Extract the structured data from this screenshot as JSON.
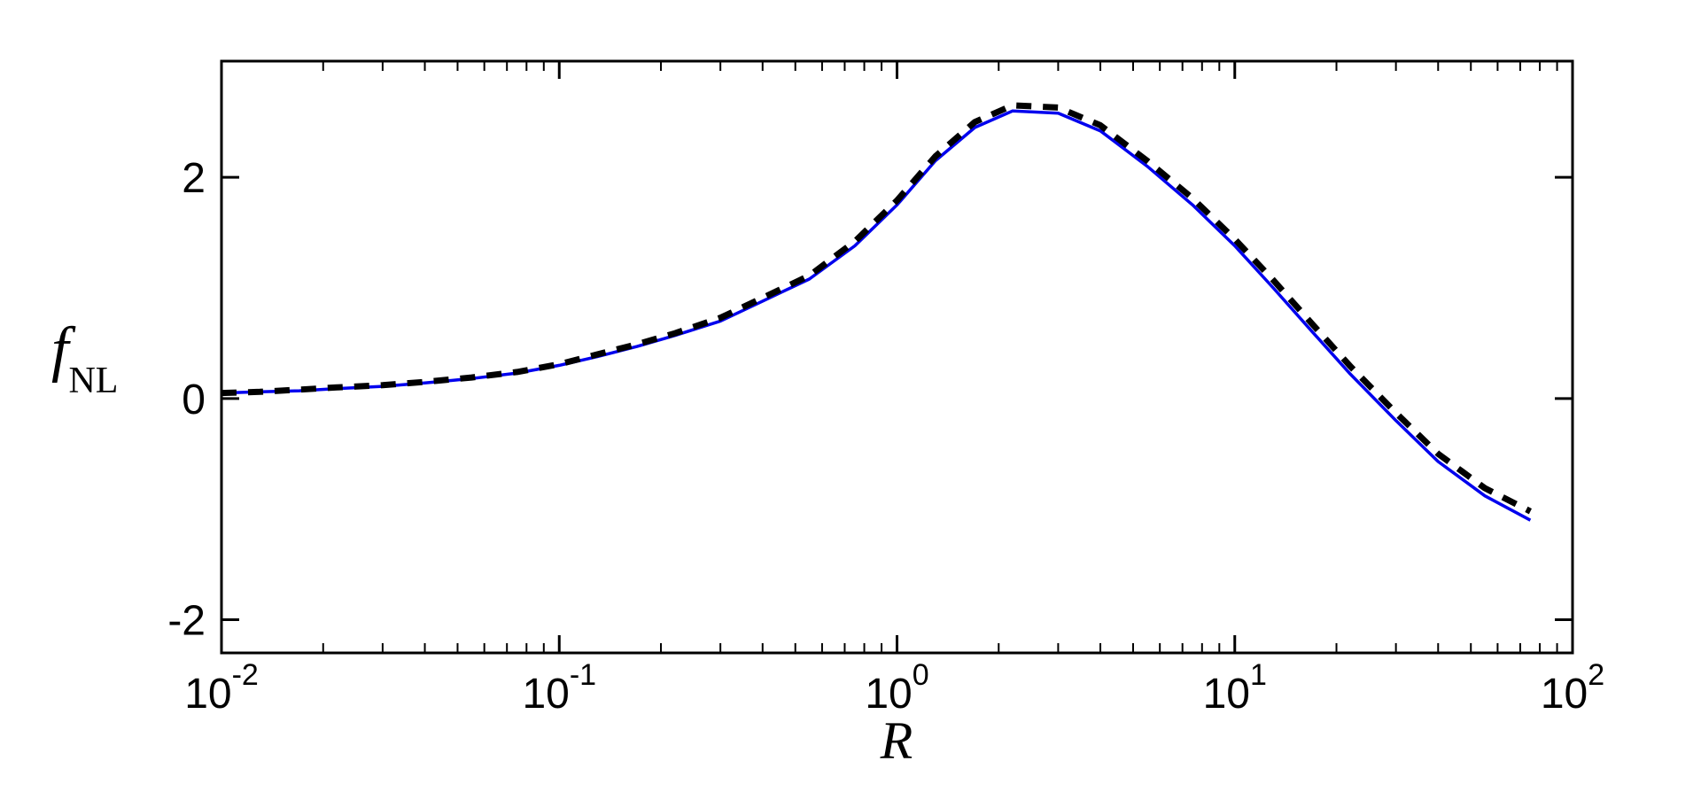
{
  "figure": {
    "background": "#ffffff",
    "xlabel": "R",
    "ylabel_main": "f",
    "ylabel_sub": "NL",
    "axis_color": "#000000"
  },
  "chart_data": {
    "type": "line",
    "title": "",
    "xlabel": "R",
    "ylabel": "f_NL",
    "x_scale": "log",
    "y_scale": "linear",
    "xlim": [
      0.01,
      100
    ],
    "ylim": [
      -2.3,
      3.05
    ],
    "grid": false,
    "legend": "none",
    "x_tick_values": [
      0.01,
      0.1,
      1,
      10,
      100
    ],
    "x_tick_labels": [
      {
        "base": "10",
        "exp": "-2"
      },
      {
        "base": "10",
        "exp": "-1"
      },
      {
        "base": "10",
        "exp": "0"
      },
      {
        "base": "10",
        "exp": "1"
      },
      {
        "base": "10",
        "exp": "2"
      }
    ],
    "y_ticks": [
      {
        "value": 2,
        "label": "2"
      },
      {
        "value": 0,
        "label": "0"
      },
      {
        "value": -2,
        "label": "-2"
      }
    ],
    "series": [
      {
        "name": "solid-blue-curve",
        "color": "#0000ee",
        "style": "solid",
        "width": 3.5,
        "x": [
          0.01,
          0.013,
          0.017,
          0.022,
          0.03,
          0.04,
          0.055,
          0.075,
          0.1,
          0.13,
          0.17,
          0.22,
          0.3,
          0.4,
          0.55,
          0.75,
          1.0,
          1.3,
          1.7,
          2.2,
          3.0,
          4.0,
          5.5,
          7.5,
          10,
          13,
          17,
          22,
          30,
          40,
          55,
          75
        ],
        "y": [
          0.05,
          0.06,
          0.07,
          0.09,
          0.11,
          0.14,
          0.18,
          0.23,
          0.3,
          0.38,
          0.47,
          0.57,
          0.7,
          0.88,
          1.08,
          1.38,
          1.75,
          2.15,
          2.45,
          2.6,
          2.58,
          2.42,
          2.1,
          1.75,
          1.38,
          1.0,
          0.6,
          0.22,
          -0.2,
          -0.57,
          -0.88,
          -1.1
        ]
      },
      {
        "name": "dashed-black-curve",
        "color": "#000000",
        "style": "dashed",
        "width": 7,
        "x": [
          0.01,
          0.013,
          0.017,
          0.022,
          0.03,
          0.04,
          0.055,
          0.075,
          0.1,
          0.13,
          0.17,
          0.22,
          0.3,
          0.4,
          0.55,
          0.75,
          1.0,
          1.3,
          1.7,
          2.2,
          3.0,
          4.0,
          5.5,
          7.5,
          10,
          13,
          17,
          22,
          30,
          40,
          55,
          75
        ],
        "y": [
          0.05,
          0.06,
          0.08,
          0.1,
          0.12,
          0.15,
          0.19,
          0.24,
          0.31,
          0.4,
          0.49,
          0.59,
          0.73,
          0.91,
          1.11,
          1.42,
          1.79,
          2.19,
          2.5,
          2.65,
          2.63,
          2.47,
          2.15,
          1.81,
          1.44,
          1.07,
          0.67,
          0.29,
          -0.13,
          -0.5,
          -0.81,
          -1.02
        ]
      }
    ]
  }
}
